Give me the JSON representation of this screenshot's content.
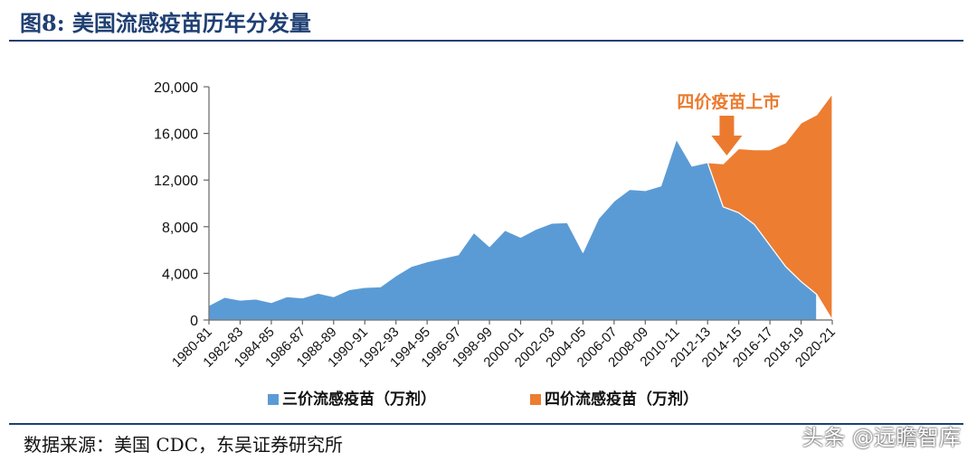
{
  "figure": {
    "title": "图8:  美国流感疫苗历年分发量",
    "source": "数据来源：美国 CDC，东吴证券研究所",
    "watermark": "头条 @远瞻智库"
  },
  "chart_data": {
    "type": "area",
    "stacked": true,
    "categories": [
      "1980-81",
      "1981-82",
      "1982-83",
      "1983-84",
      "1984-85",
      "1985-86",
      "1986-87",
      "1987-88",
      "1988-89",
      "1989-90",
      "1990-91",
      "1991-92",
      "1992-93",
      "1993-94",
      "1994-95",
      "1995-96",
      "1996-97",
      "1997-98",
      "1998-99",
      "1999-00",
      "2000-01",
      "2001-02",
      "2002-03",
      "2003-04",
      "2004-05",
      "2005-06",
      "2006-07",
      "2007-08",
      "2008-09",
      "2009-10",
      "2010-11",
      "2011-12",
      "2012-13",
      "2013-14",
      "2014-15",
      "2015-16",
      "2016-17",
      "2017-18",
      "2018-19",
      "2019-20",
      "2020-21"
    ],
    "x_tick_labels": [
      "1980-81",
      "1982-83",
      "1984-85",
      "1986-87",
      "1988-89",
      "1990-91",
      "1992-93",
      "1994-95",
      "1996-97",
      "1998-99",
      "2000-01",
      "2002-03",
      "2004-05",
      "2006-07",
      "2008-09",
      "2010-11",
      "2012-13",
      "2014-15",
      "2016-17",
      "2018-19",
      "2020-21"
    ],
    "series": [
      {
        "name": "三价流感疫苗（万剂）",
        "color": "#5b9bd5",
        "values": [
          1250,
          1950,
          1700,
          1800,
          1500,
          2000,
          1900,
          2300,
          2000,
          2600,
          2800,
          2850,
          3800,
          4600,
          5000,
          5300,
          5600,
          7500,
          6300,
          7700,
          7100,
          7800,
          8300,
          8350,
          5800,
          8700,
          10200,
          11200,
          11100,
          11500,
          15500,
          13200,
          13500,
          9700,
          9200,
          8200,
          6400,
          4600,
          3300,
          2200,
          0
        ]
      },
      {
        "name": "四价流感疫苗（万剂）",
        "color": "#ed7d31",
        "values": [
          0,
          0,
          0,
          0,
          0,
          0,
          0,
          0,
          0,
          0,
          0,
          0,
          0,
          0,
          0,
          0,
          0,
          0,
          0,
          0,
          0,
          0,
          0,
          0,
          0,
          0,
          0,
          0,
          0,
          0,
          0,
          0,
          0,
          3700,
          5500,
          6400,
          8200,
          10600,
          13600,
          15400,
          19400
        ]
      }
    ],
    "ylim": [
      0,
      20000
    ],
    "yticks": [
      "0",
      "4,000",
      "8,000",
      "12,000",
      "16,000",
      "20,000"
    ],
    "ytick_values": [
      0,
      4000,
      8000,
      12000,
      16000,
      20000
    ],
    "annotation": {
      "text": "四价疫苗上市",
      "category": "2013-14",
      "color": "#ec7a2e"
    },
    "legend_position": "bottom",
    "grid": false
  }
}
